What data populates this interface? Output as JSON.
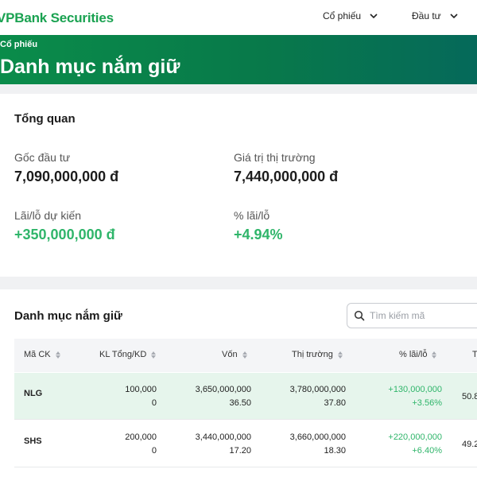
{
  "nav": {
    "logo": "VPBank Securities",
    "menu": [
      {
        "label": "Cổ phiếu"
      },
      {
        "label": "Đầu tư"
      }
    ]
  },
  "banner": {
    "breadcrumb": "Cổ phiếu",
    "title": "Danh mục nắm giữ"
  },
  "overview": {
    "title": "Tổng quan",
    "stats": [
      {
        "label": "Gốc đầu tư",
        "value": "7,090,000,000 đ"
      },
      {
        "label": "Giá trị thị trường",
        "value": "7,440,000,000 đ"
      },
      {
        "label": "Lãi/lỗ dự kiến",
        "value": "+350,000,000 đ"
      },
      {
        "label": "% lãi/lỗ",
        "value": "+4.94%"
      }
    ]
  },
  "holdings": {
    "title": "Danh mục nắm giữ",
    "search_placeholder": "Tìm kiếm mã",
    "columns": [
      "Mã CK",
      "KL Tổng/KD",
      "Vốn",
      "Thị trường",
      "% lãi/lỗ",
      "T"
    ],
    "rows": [
      {
        "symbol": "NLG",
        "qty_total": "100,000",
        "qty_avail": "0",
        "cost": "3,650,000,000",
        "cost_price": "36.50",
        "market": "3,780,000,000",
        "market_price": "37.80",
        "pl": "+130,000,000",
        "pl_pct": "+3.56%",
        "extra": "50.8"
      },
      {
        "symbol": "SHS",
        "qty_total": "200,000",
        "qty_avail": "0",
        "cost": "3,440,000,000",
        "cost_price": "17.20",
        "market": "3,660,000,000",
        "market_price": "18.30",
        "pl": "+220,000,000",
        "pl_pct": "+6.40%",
        "extra": "49.2"
      }
    ]
  },
  "colors": {
    "brand_green": "#1aa251",
    "banner_start": "#0a8c4a",
    "banner_end": "#05695a",
    "positive": "#2fb56a",
    "highlight_row": "#e6f5ec"
  }
}
